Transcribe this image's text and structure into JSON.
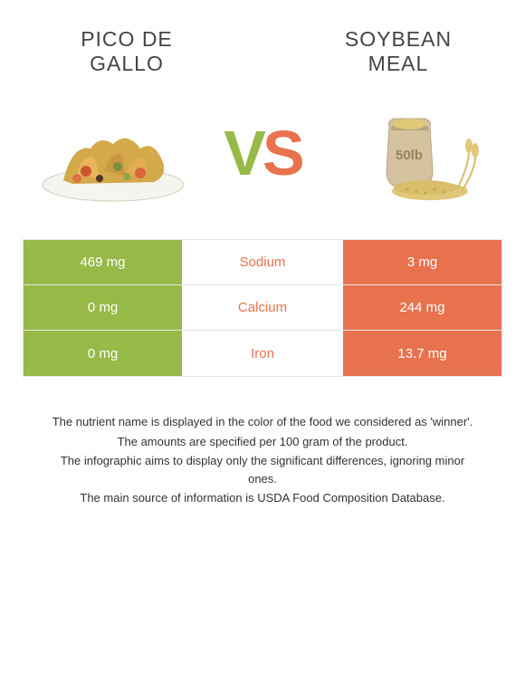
{
  "colors": {
    "left": "#97b947",
    "right": "#e8724d",
    "title": "#444444"
  },
  "food_left": {
    "title": "Pico de Gallo"
  },
  "food_right": {
    "title": "Soybean meal"
  },
  "vs": {
    "v": "V",
    "s": "S"
  },
  "rows": [
    {
      "left": "469 mg",
      "label": "Sodium",
      "right": "3 mg",
      "winner": "right"
    },
    {
      "left": "0 mg",
      "label": "Calcium",
      "right": "244 mg",
      "winner": "right"
    },
    {
      "left": "0 mg",
      "label": "Iron",
      "right": "13.7 mg",
      "winner": "right"
    }
  ],
  "footer": [
    "The nutrient name is displayed in the color of the food we considered as 'winner'.",
    "The amounts are specified per 100 gram of the product.",
    "The infographic aims to display only the significant differences, ignoring minor ones.",
    "The main source of information is USDA Food Composition Database."
  ]
}
